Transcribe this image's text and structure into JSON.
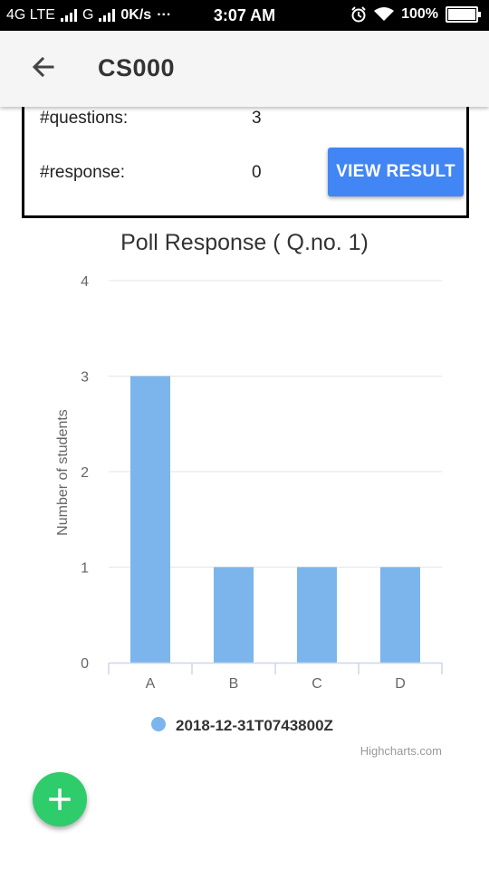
{
  "statusbar": {
    "network": "4G LTE",
    "network2": "G",
    "speed": "0K/s",
    "dots": "···",
    "time": "3:07 AM",
    "battery": "100%"
  },
  "appbar": {
    "title": "CS000",
    "back_icon": "arrow-left-icon"
  },
  "card": {
    "questions_label": "#questions:",
    "questions_value": "3",
    "response_label": "#response:",
    "response_value": "0",
    "view_result_label": "VIEW RESULT"
  },
  "chart_data": {
    "type": "bar",
    "title": "Poll Response ( Q.no. 1)",
    "categories": [
      "A",
      "B",
      "C",
      "D"
    ],
    "series": [
      {
        "name": "2018-12-31T0743800Z",
        "values": [
          3,
          1,
          1,
          1
        ],
        "color": "#7cb5ec"
      }
    ],
    "ylabel": "Number of students",
    "xlabel": "",
    "ylim": [
      0,
      4
    ],
    "yticks": [
      0,
      1,
      2,
      3,
      4
    ],
    "grid": true,
    "legend_position": "bottom-center",
    "credit": "Highcharts.com"
  },
  "fab": {
    "icon": "plus-icon"
  }
}
